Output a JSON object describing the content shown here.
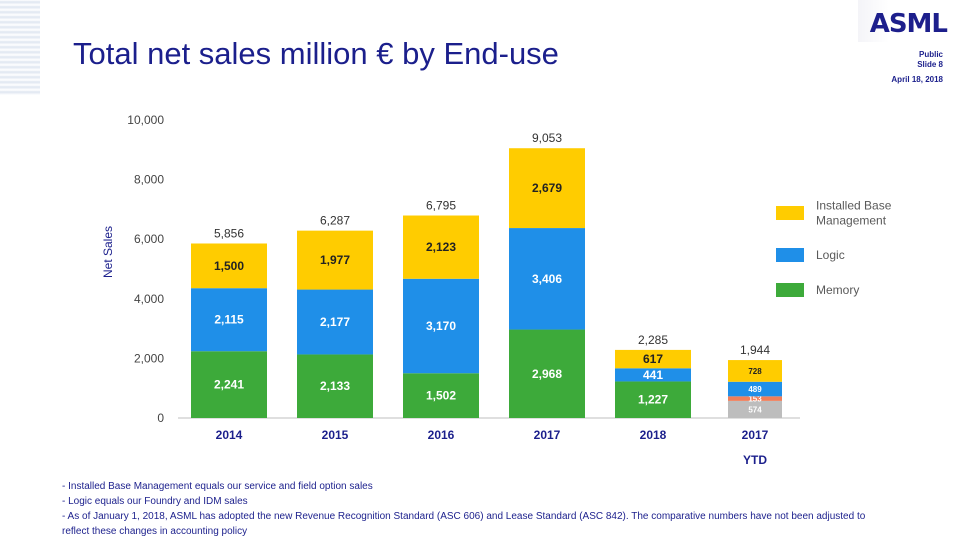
{
  "header": {
    "title": "Total net sales million € by End-use",
    "logo": "ASML",
    "classification": "Public",
    "slide": "Slide 8",
    "date": "April 18, 2018"
  },
  "chart_data": {
    "type": "bar",
    "stacked": true,
    "categories": [
      "2014",
      "2015",
      "2016",
      "2017",
      "2018",
      "2017"
    ],
    "category_sublabels": [
      "",
      "",
      "",
      "",
      "",
      "YTD"
    ],
    "ylabel": "Net Sales",
    "ylim": [
      0,
      10000
    ],
    "yticks": [
      0,
      2000,
      4000,
      6000,
      8000,
      10000
    ],
    "ytick_labels": [
      "0",
      "2,000",
      "4,000",
      "6,000",
      "8,000",
      "10,000"
    ],
    "totals": [
      "5,856",
      "6,287",
      "6,795",
      "9,053",
      "2,285",
      "1,944"
    ],
    "series": [
      {
        "name": "Memory",
        "color": "#3daa3a",
        "values": [
          2241,
          2133,
          1502,
          2968,
          1227,
          574
        ],
        "labels": [
          "2,241",
          "2,133",
          "1,502",
          "2,968",
          "1,227",
          "574"
        ]
      },
      {
        "name": "",
        "color": "#f07e5a",
        "values": [
          0,
          0,
          0,
          0,
          0,
          153
        ],
        "labels": [
          "",
          "",
          "",
          "",
          "",
          "153"
        ]
      },
      {
        "name": "Logic",
        "color": "#1f8fe8",
        "values": [
          2115,
          2177,
          3170,
          3406,
          441,
          489
        ],
        "labels": [
          "2,115",
          "2,177",
          "3,170",
          "3,406",
          "441",
          "489"
        ]
      },
      {
        "name": "Installed Base Management",
        "color": "#ffcc00",
        "values": [
          1500,
          1977,
          2123,
          2679,
          617,
          728
        ],
        "labels": [
          "1,500",
          "1,977",
          "2,123",
          "2,679",
          "617",
          "728"
        ]
      }
    ],
    "last_bar_memory_color": "#bdbdbd",
    "legend": [
      {
        "label_lines": [
          "Installed Base",
          "Management"
        ],
        "color": "#ffcc00"
      },
      {
        "label_lines": [
          "Logic"
        ],
        "color": "#1f8fe8"
      },
      {
        "label_lines": [
          "Memory"
        ],
        "color": "#3daa3a"
      }
    ],
    "legend_position": "right",
    "grid": false
  },
  "footnotes": [
    "- Installed Base Management equals our service and field option sales",
    "- Logic equals our Foundry and IDM sales",
    "- As of January 1, 2018, ASML has adopted the new Revenue Recognition Standard (ASC 606) and Lease Standard (ASC 842). The comparative numbers have not been adjusted to reflect these changes in accounting policy"
  ]
}
